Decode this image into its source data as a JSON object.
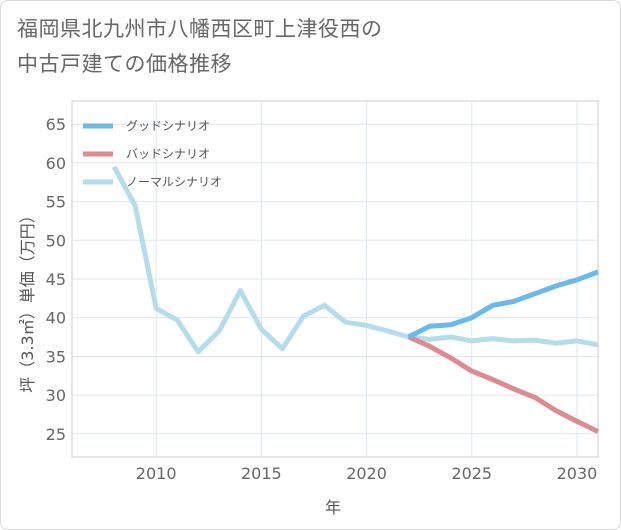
{
  "chart_data": {
    "type": "line",
    "title_lines": [
      "福岡県北九州市八幡西区町上津役西の",
      "中古戸建ての価格推移"
    ],
    "xlabel": "年",
    "ylabel": "坪（3.3㎡）単価（万円）",
    "xlim": [
      2006.0,
      2031.0
    ],
    "ylim": [
      22,
      68
    ],
    "xticks": [
      2010,
      2015,
      2020,
      2025,
      2030
    ],
    "yticks": [
      25,
      30,
      35,
      40,
      45,
      50,
      55,
      60,
      65
    ],
    "grid": true,
    "legend_position": "top-left",
    "series": [
      {
        "name": "グッドシナリオ",
        "color": "#6bb8ec",
        "x": [
          2022,
          2023,
          2024,
          2025,
          2026,
          2027,
          2028,
          2029,
          2030,
          2031
        ],
        "y": [
          37.5,
          38.9,
          39.1,
          40.0,
          41.6,
          42.1,
          43.1,
          44.1,
          44.9,
          45.9
        ]
      },
      {
        "name": "バッドシナリオ",
        "color": "#de8a91",
        "x": [
          2022,
          2023,
          2024,
          2025,
          2026,
          2027,
          2028,
          2029,
          2030,
          2031
        ],
        "y": [
          37.5,
          36.3,
          34.8,
          33.1,
          32.0,
          30.8,
          29.7,
          28.0,
          26.6,
          25.3
        ]
      },
      {
        "name": "ノーマルシナリオ",
        "color": "#b5dcec",
        "x": [
          2008,
          2009,
          2010,
          2011,
          2012,
          2013,
          2014,
          2015,
          2016,
          2017,
          2018,
          2019,
          2020,
          2021,
          2022,
          2023,
          2024,
          2025,
          2026,
          2027,
          2028,
          2029,
          2030,
          2031
        ],
        "y": [
          59.5,
          54.5,
          41.2,
          39.7,
          35.6,
          38.3,
          43.5,
          38.5,
          36.0,
          40.2,
          41.6,
          39.4,
          39.0,
          38.3,
          37.5,
          37.2,
          37.5,
          37.0,
          37.3,
          37.0,
          37.1,
          36.7,
          37.0,
          36.5
        ]
      }
    ]
  }
}
